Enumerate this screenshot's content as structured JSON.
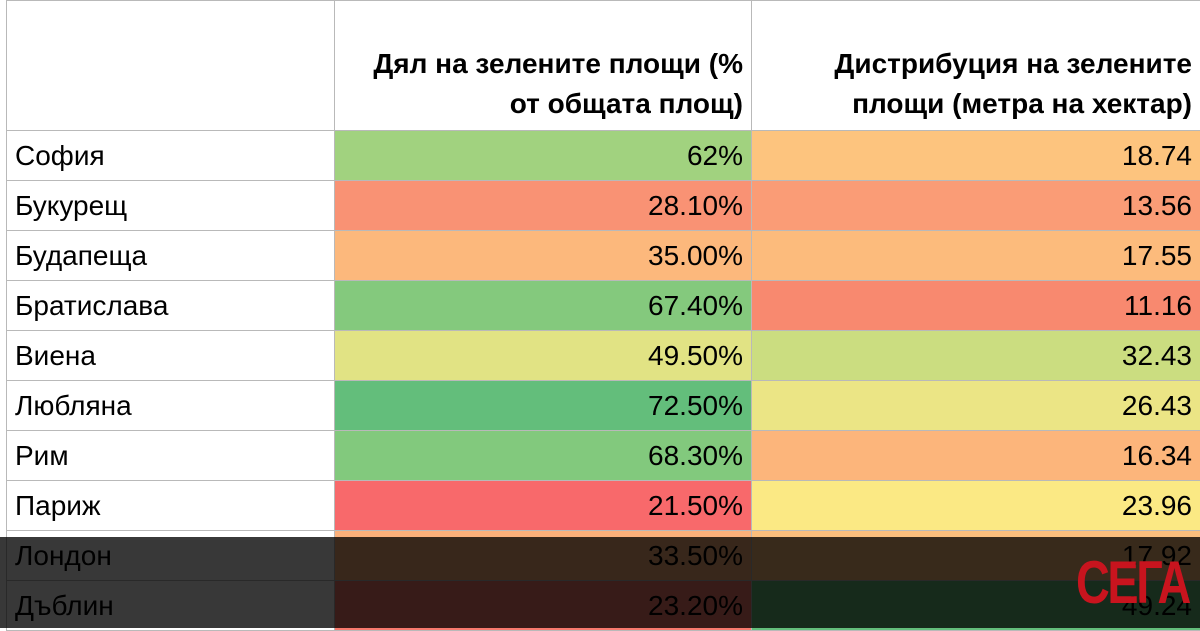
{
  "table": {
    "headers": [
      "",
      "Дял на зелените площи (% от общата площ)",
      "Дистрибуция на зелените площи (метра на хектар)"
    ],
    "rows": [
      {
        "city": "София",
        "share": "62%",
        "share_color": "#a1d27f",
        "dist": "18.74",
        "dist_color": "#fdc47e"
      },
      {
        "city": "Букурещ",
        "share": "28.10%",
        "share_color": "#f99274",
        "dist": "13.56",
        "dist_color": "#fa9c76"
      },
      {
        "city": "Будапеща",
        "share": "35.00%",
        "share_color": "#fcb87c",
        "dist": "17.55",
        "dist_color": "#fcbb7c"
      },
      {
        "city": "Братислава",
        "share": "67.40%",
        "share_color": "#84c97d",
        "dist": "11.16",
        "dist_color": "#f8896f"
      },
      {
        "city": "Виена",
        "share": "49.50%",
        "share_color": "#e1e384",
        "dist": "32.43",
        "dist_color": "#cbdd80"
      },
      {
        "city": "Любляна",
        "share": "72.50%",
        "share_color": "#63be7b",
        "dist": "26.43",
        "dist_color": "#ebe585"
      },
      {
        "city": "Рим",
        "share": "68.30%",
        "share_color": "#82c97d",
        "dist": "16.34",
        "dist_color": "#fcb57b"
      },
      {
        "city": "Париж",
        "share": "21.50%",
        "share_color": "#f8696b",
        "dist": "23.96",
        "dist_color": "#fbe984"
      },
      {
        "city": "Лондон",
        "share": "33.50%",
        "share_color": "#fcb07a",
        "dist": "17.92",
        "dist_color": "#fcbf7d"
      },
      {
        "city": "Дъблин",
        "share": "23.20%",
        "share_color": "#f87a6e",
        "dist": "49.24",
        "dist_color": "#63be7b"
      }
    ]
  },
  "logo": {
    "text": "СЕГА",
    "color": "#c8141e"
  }
}
